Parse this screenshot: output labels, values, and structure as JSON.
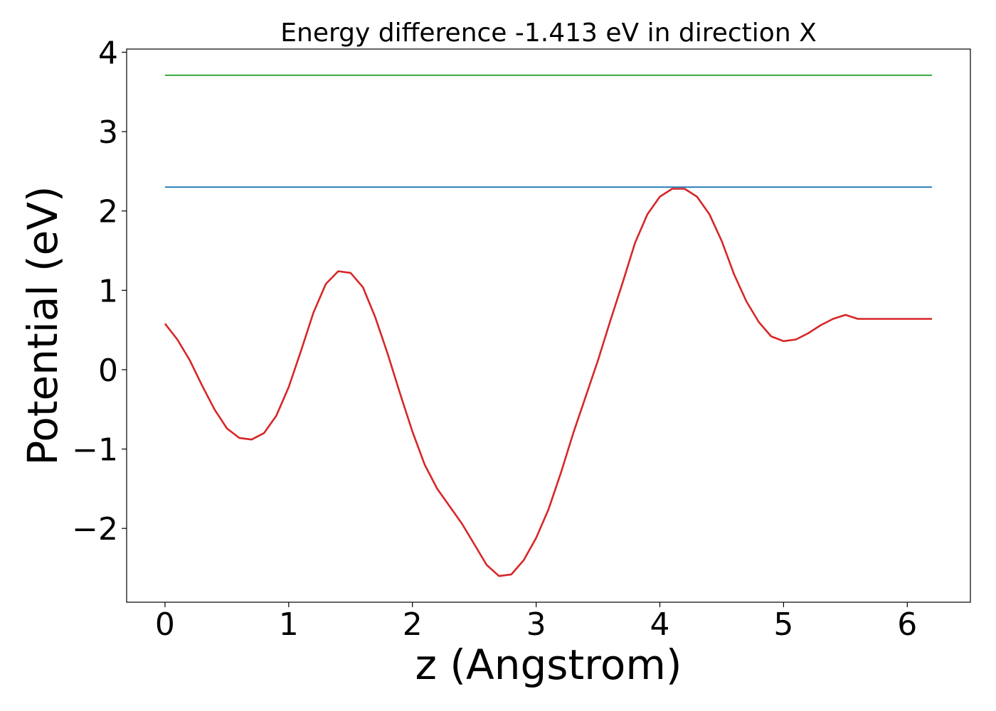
{
  "chart_data": {
    "type": "line",
    "title": "Energy difference -1.413 eV in direction X",
    "xlabel": "z (Angstrom)",
    "ylabel": "Potential (eV)",
    "xlim": [
      -0.31,
      6.51
    ],
    "ylim": [
      -2.93,
      4.04
    ],
    "grid": false,
    "legend": "none",
    "x_ticks": [
      0,
      1,
      2,
      3,
      4,
      5,
      6
    ],
    "x_tick_labels": [
      "0",
      "1",
      "2",
      "3",
      "4",
      "5",
      "6"
    ],
    "y_ticks": [
      -2,
      -1,
      0,
      1,
      2,
      3,
      4
    ],
    "y_tick_labels": [
      "−2",
      "−1",
      "0",
      "1",
      "2",
      "3",
      "4"
    ],
    "series": [
      {
        "color": "#2ca02c",
        "x": [
          0.0,
          6.2
        ],
        "y": [
          3.71,
          3.71
        ]
      },
      {
        "color": "#1f77b4",
        "x": [
          0.0,
          6.2
        ],
        "y": [
          2.3,
          2.3
        ]
      },
      {
        "color": "#d62728",
        "x": [
          0.0,
          0.1,
          0.2,
          0.3,
          0.4,
          0.5,
          0.6,
          0.7,
          0.8,
          0.9,
          1.0,
          1.1,
          1.2,
          1.3,
          1.4,
          1.5,
          1.6,
          1.7,
          1.8,
          1.9,
          2.0,
          2.1,
          2.2,
          2.3,
          2.4,
          2.5,
          2.6,
          2.7,
          2.8,
          2.9,
          3.0,
          3.1,
          3.2,
          3.3,
          3.4,
          3.5,
          3.6,
          3.7,
          3.8,
          3.9,
          4.0,
          4.1,
          4.2,
          4.3,
          4.4,
          4.5,
          4.6,
          4.7,
          4.8,
          4.9,
          5.0,
          5.1,
          5.2,
          5.3,
          5.4,
          5.5,
          5.6,
          5.7,
          5.8,
          5.9,
          6.0,
          6.1,
          6.2
        ],
        "y": [
          0.58,
          0.38,
          0.12,
          -0.2,
          -0.5,
          -0.74,
          -0.86,
          -0.88,
          -0.8,
          -0.58,
          -0.22,
          0.24,
          0.72,
          1.08,
          1.24,
          1.22,
          1.04,
          0.66,
          0.2,
          -0.3,
          -0.78,
          -1.2,
          -1.5,
          -1.72,
          -1.94,
          -2.2,
          -2.46,
          -2.6,
          -2.58,
          -2.4,
          -2.12,
          -1.76,
          -1.3,
          -0.8,
          -0.34,
          0.12,
          0.62,
          1.1,
          1.6,
          1.96,
          2.18,
          2.28,
          2.28,
          2.18,
          1.96,
          1.62,
          1.2,
          0.86,
          0.6,
          0.42,
          0.36,
          0.38,
          0.46,
          0.56,
          0.64,
          0.69,
          0.64,
          0.64,
          0.64,
          0.64,
          0.64,
          0.64,
          0.64
        ]
      }
    ]
  }
}
